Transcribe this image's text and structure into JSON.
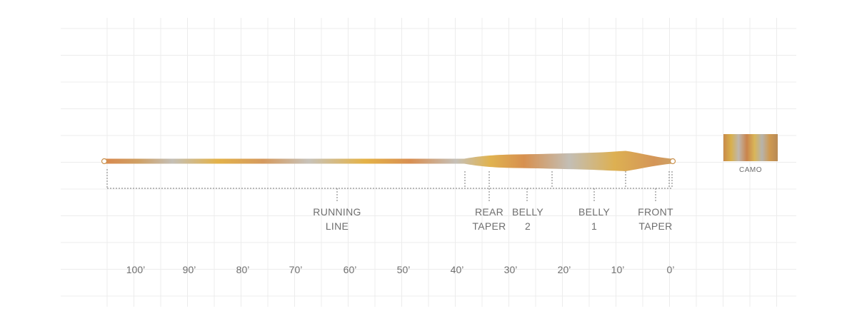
{
  "sections": [
    {
      "id": "running-line",
      "lines": [
        "RUNNING",
        "LINE"
      ]
    },
    {
      "id": "rear-taper",
      "lines": [
        "REAR",
        "TAPER"
      ]
    },
    {
      "id": "belly-2",
      "lines": [
        "BELLY",
        "2"
      ]
    },
    {
      "id": "belly-1",
      "lines": [
        "BELLY",
        "1"
      ]
    },
    {
      "id": "front-taper",
      "lines": [
        "FRONT",
        "TAPER"
      ]
    }
  ],
  "scale": {
    "ticks": [
      "100’",
      "90’",
      "80’",
      "70’",
      "60’",
      "50’",
      "40’",
      "30’",
      "20’",
      "10’",
      "0’"
    ]
  },
  "swatch": {
    "label": "CAMO",
    "colors": [
      "#c98a4a",
      "#d8b04c",
      "#bfb7ad",
      "#c9844c",
      "#d9b558",
      "#b7b3ab",
      "#cf9a52"
    ]
  },
  "line_colors": [
    "#d8894d",
    "#c9a35c",
    "#c7c3bb",
    "#e2b34f",
    "#cfa064",
    "#bdbab4",
    "#e0b048",
    "#d88f52",
    "#c6c1b8",
    "#e3b04a"
  ]
}
